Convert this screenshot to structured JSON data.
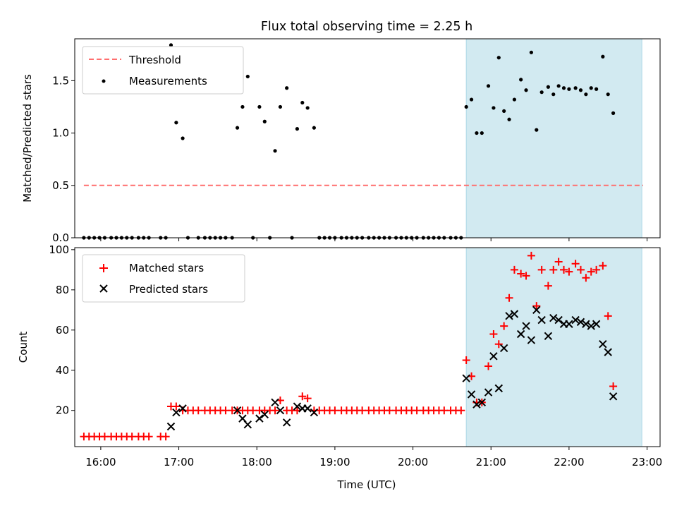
{
  "title": "Flux total observing time = 2.25 h",
  "colors": {
    "threshold": "#ff6f6f",
    "measurement": "#000000",
    "matched": "#ff0000",
    "predicted": "#000000",
    "highlight": "#add8e6"
  },
  "chart_data": [
    {
      "type": "scatter",
      "ylabel": "Matched/Predicted stars",
      "xlabel": "",
      "xlim": [
        "15:40",
        "23:10"
      ],
      "ylim": [
        0,
        1.9
      ],
      "yticks": [
        0.0,
        0.5,
        1.0,
        1.5
      ],
      "ytick_labels": [
        "0.0",
        "0.5",
        "1.0",
        "1.5"
      ],
      "highlight_span": [
        "20:41",
        "22:56"
      ],
      "legend": {
        "placement": "top-left",
        "entries": [
          "Threshold",
          "Measurements"
        ]
      },
      "threshold": {
        "name": "Threshold",
        "value": 0.5,
        "x": [
          "15:47",
          "22:57"
        ]
      },
      "series": [
        {
          "name": "Measurements",
          "points": [
            [
              "15:47",
              0
            ],
            [
              "15:51",
              0
            ],
            [
              "15:55",
              0
            ],
            [
              "15:59",
              0
            ],
            [
              "16:03",
              0
            ],
            [
              "16:08",
              0
            ],
            [
              "16:12",
              0
            ],
            [
              "16:16",
              0
            ],
            [
              "16:20",
              0
            ],
            [
              "16:24",
              0
            ],
            [
              "16:29",
              0
            ],
            [
              "16:33",
              0
            ],
            [
              "16:37",
              0
            ],
            [
              "16:46",
              0
            ],
            [
              "16:50",
              0
            ],
            [
              "16:54",
              1.84
            ],
            [
              "16:58",
              1.1
            ],
            [
              "17:03",
              0.95
            ],
            [
              "17:07",
              0
            ],
            [
              "17:15",
              0
            ],
            [
              "17:20",
              0
            ],
            [
              "17:24",
              0
            ],
            [
              "17:28",
              0
            ],
            [
              "17:32",
              0
            ],
            [
              "17:36",
              0
            ],
            [
              "17:41",
              0
            ],
            [
              "17:45",
              1.05
            ],
            [
              "17:49",
              1.25
            ],
            [
              "17:53",
              1.54
            ],
            [
              "17:57",
              0
            ],
            [
              "18:02",
              1.25
            ],
            [
              "18:06",
              1.11
            ],
            [
              "18:10",
              0
            ],
            [
              "18:14",
              0.83
            ],
            [
              "18:18",
              1.25
            ],
            [
              "18:23",
              1.43
            ],
            [
              "18:27",
              0
            ],
            [
              "18:31",
              1.04
            ],
            [
              "18:35",
              1.29
            ],
            [
              "18:39",
              1.24
            ],
            [
              "18:44",
              1.05
            ],
            [
              "18:48",
              0
            ],
            [
              "18:52",
              0
            ],
            [
              "18:56",
              0
            ],
            [
              "19:00",
              0
            ],
            [
              "19:05",
              0
            ],
            [
              "19:09",
              0
            ],
            [
              "19:13",
              0
            ],
            [
              "19:17",
              0
            ],
            [
              "19:21",
              0
            ],
            [
              "19:26",
              0
            ],
            [
              "19:30",
              0
            ],
            [
              "19:34",
              0
            ],
            [
              "19:38",
              0
            ],
            [
              "19:42",
              0
            ],
            [
              "19:47",
              0
            ],
            [
              "19:51",
              0
            ],
            [
              "19:55",
              0
            ],
            [
              "19:59",
              0
            ],
            [
              "20:03",
              0
            ],
            [
              "20:08",
              0
            ],
            [
              "20:12",
              0
            ],
            [
              "20:16",
              0
            ],
            [
              "20:20",
              0
            ],
            [
              "20:24",
              0
            ],
            [
              "20:29",
              0
            ],
            [
              "20:33",
              0
            ],
            [
              "20:37",
              0
            ],
            [
              "20:41",
              1.25
            ],
            [
              "20:45",
              1.32
            ],
            [
              "20:49",
              1.0
            ],
            [
              "20:53",
              1.0
            ],
            [
              "20:58",
              1.45
            ],
            [
              "21:02",
              1.24
            ],
            [
              "21:06",
              1.72
            ],
            [
              "21:10",
              1.21
            ],
            [
              "21:14",
              1.13
            ],
            [
              "21:18",
              1.32
            ],
            [
              "21:23",
              1.51
            ],
            [
              "21:27",
              1.41
            ],
            [
              "21:31",
              1.77
            ],
            [
              "21:35",
              1.03
            ],
            [
              "21:39",
              1.39
            ],
            [
              "21:44",
              1.44
            ],
            [
              "21:48",
              1.37
            ],
            [
              "21:52",
              1.45
            ],
            [
              "21:56",
              1.43
            ],
            [
              "22:00",
              1.42
            ],
            [
              "22:05",
              1.43
            ],
            [
              "22:09",
              1.41
            ],
            [
              "22:13",
              1.37
            ],
            [
              "22:17",
              1.43
            ],
            [
              "22:21",
              1.42
            ],
            [
              "22:26",
              1.73
            ],
            [
              "22:30",
              1.37
            ],
            [
              "22:34",
              1.19
            ]
          ]
        }
      ]
    },
    {
      "type": "scatter",
      "ylabel": "Count",
      "xlabel": "Time (UTC)",
      "xlim": [
        "15:40",
        "23:10"
      ],
      "ylim": [
        2,
        101
      ],
      "yticks": [
        20,
        40,
        60,
        80,
        100
      ],
      "ytick_labels": [
        "20",
        "40",
        "60",
        "80",
        "100"
      ],
      "xticks": [
        "16:00",
        "17:00",
        "18:00",
        "19:00",
        "20:00",
        "21:00",
        "22:00",
        "23:00"
      ],
      "xtick_labels": [
        "16:00",
        "17:00",
        "18:00",
        "19:00",
        "20:00",
        "21:00",
        "22:00",
        "23:00"
      ],
      "highlight_span": [
        "20:41",
        "22:56"
      ],
      "legend": {
        "placement": "top-left",
        "entries": [
          "Matched stars",
          "Predicted stars"
        ]
      },
      "series": [
        {
          "name": "Matched stars",
          "marker": "plus",
          "points": [
            [
              "15:47",
              7
            ],
            [
              "15:51",
              7
            ],
            [
              "15:55",
              7
            ],
            [
              "15:59",
              7
            ],
            [
              "16:03",
              7
            ],
            [
              "16:08",
              7
            ],
            [
              "16:12",
              7
            ],
            [
              "16:16",
              7
            ],
            [
              "16:20",
              7
            ],
            [
              "16:24",
              7
            ],
            [
              "16:29",
              7
            ],
            [
              "16:33",
              7
            ],
            [
              "16:37",
              7
            ],
            [
              "16:46",
              7
            ],
            [
              "16:50",
              7
            ],
            [
              "16:54",
              22
            ],
            [
              "16:58",
              22
            ],
            [
              "17:03",
              20
            ],
            [
              "17:07",
              20
            ],
            [
              "17:11",
              20
            ],
            [
              "17:15",
              20
            ],
            [
              "17:20",
              20
            ],
            [
              "17:24",
              20
            ],
            [
              "17:28",
              20
            ],
            [
              "17:32",
              20
            ],
            [
              "17:36",
              20
            ],
            [
              "17:41",
              20
            ],
            [
              "17:45",
              20
            ],
            [
              "17:49",
              20
            ],
            [
              "17:53",
              20
            ],
            [
              "17:57",
              20
            ],
            [
              "18:02",
              20
            ],
            [
              "18:06",
              20
            ],
            [
              "18:10",
              20
            ],
            [
              "18:14",
              20
            ],
            [
              "18:18",
              25
            ],
            [
              "18:23",
              20
            ],
            [
              "18:27",
              20
            ],
            [
              "18:31",
              20
            ],
            [
              "18:35",
              27
            ],
            [
              "18:39",
              26
            ],
            [
              "18:44",
              20
            ],
            [
              "18:48",
              20
            ],
            [
              "18:52",
              20
            ],
            [
              "18:56",
              20
            ],
            [
              "19:00",
              20
            ],
            [
              "19:05",
              20
            ],
            [
              "19:09",
              20
            ],
            [
              "19:13",
              20
            ],
            [
              "19:17",
              20
            ],
            [
              "19:21",
              20
            ],
            [
              "19:26",
              20
            ],
            [
              "19:30",
              20
            ],
            [
              "19:34",
              20
            ],
            [
              "19:38",
              20
            ],
            [
              "19:42",
              20
            ],
            [
              "19:47",
              20
            ],
            [
              "19:51",
              20
            ],
            [
              "19:55",
              20
            ],
            [
              "19:59",
              20
            ],
            [
              "20:03",
              20
            ],
            [
              "20:08",
              20
            ],
            [
              "20:12",
              20
            ],
            [
              "20:16",
              20
            ],
            [
              "20:20",
              20
            ],
            [
              "20:24",
              20
            ],
            [
              "20:29",
              20
            ],
            [
              "20:33",
              20
            ],
            [
              "20:37",
              20
            ],
            [
              "20:41",
              45
            ],
            [
              "20:45",
              37
            ],
            [
              "20:49",
              24
            ],
            [
              "20:53",
              24
            ],
            [
              "20:58",
              42
            ],
            [
              "21:02",
              58
            ],
            [
              "21:06",
              53
            ],
            [
              "21:10",
              62
            ],
            [
              "21:14",
              76
            ],
            [
              "21:18",
              90
            ],
            [
              "21:23",
              88
            ],
            [
              "21:27",
              87
            ],
            [
              "21:31",
              97
            ],
            [
              "21:35",
              72
            ],
            [
              "21:39",
              90
            ],
            [
              "21:44",
              82
            ],
            [
              "21:48",
              90
            ],
            [
              "21:52",
              94
            ],
            [
              "21:56",
              90
            ],
            [
              "22:00",
              89
            ],
            [
              "22:05",
              93
            ],
            [
              "22:09",
              90
            ],
            [
              "22:13",
              86
            ],
            [
              "22:17",
              89
            ],
            [
              "22:21",
              90
            ],
            [
              "22:26",
              92
            ],
            [
              "22:30",
              67
            ],
            [
              "22:34",
              32
            ]
          ]
        },
        {
          "name": "Predicted stars",
          "marker": "x",
          "points": [
            [
              "16:54",
              12
            ],
            [
              "16:58",
              19
            ],
            [
              "17:03",
              21
            ],
            [
              "17:45",
              20
            ],
            [
              "17:49",
              16
            ],
            [
              "17:53",
              13
            ],
            [
              "18:02",
              16
            ],
            [
              "18:06",
              18
            ],
            [
              "18:14",
              24
            ],
            [
              "18:18",
              20
            ],
            [
              "18:23",
              14
            ],
            [
              "18:31",
              22
            ],
            [
              "18:35",
              21
            ],
            [
              "18:39",
              21
            ],
            [
              "18:44",
              19
            ],
            [
              "20:41",
              36
            ],
            [
              "20:45",
              28
            ],
            [
              "20:49",
              23
            ],
            [
              "20:53",
              24
            ],
            [
              "20:58",
              29
            ],
            [
              "21:02",
              47
            ],
            [
              "21:06",
              31
            ],
            [
              "21:10",
              51
            ],
            [
              "21:14",
              67
            ],
            [
              "21:18",
              68
            ],
            [
              "21:23",
              58
            ],
            [
              "21:27",
              62
            ],
            [
              "21:31",
              55
            ],
            [
              "21:35",
              70
            ],
            [
              "21:39",
              65
            ],
            [
              "21:44",
              57
            ],
            [
              "21:48",
              66
            ],
            [
              "21:52",
              65
            ],
            [
              "21:56",
              63
            ],
            [
              "22:00",
              63
            ],
            [
              "22:05",
              65
            ],
            [
              "22:09",
              64
            ],
            [
              "22:13",
              63
            ],
            [
              "22:17",
              62
            ],
            [
              "22:21",
              63
            ],
            [
              "22:26",
              53
            ],
            [
              "22:30",
              49
            ],
            [
              "22:34",
              27
            ]
          ]
        }
      ]
    }
  ]
}
